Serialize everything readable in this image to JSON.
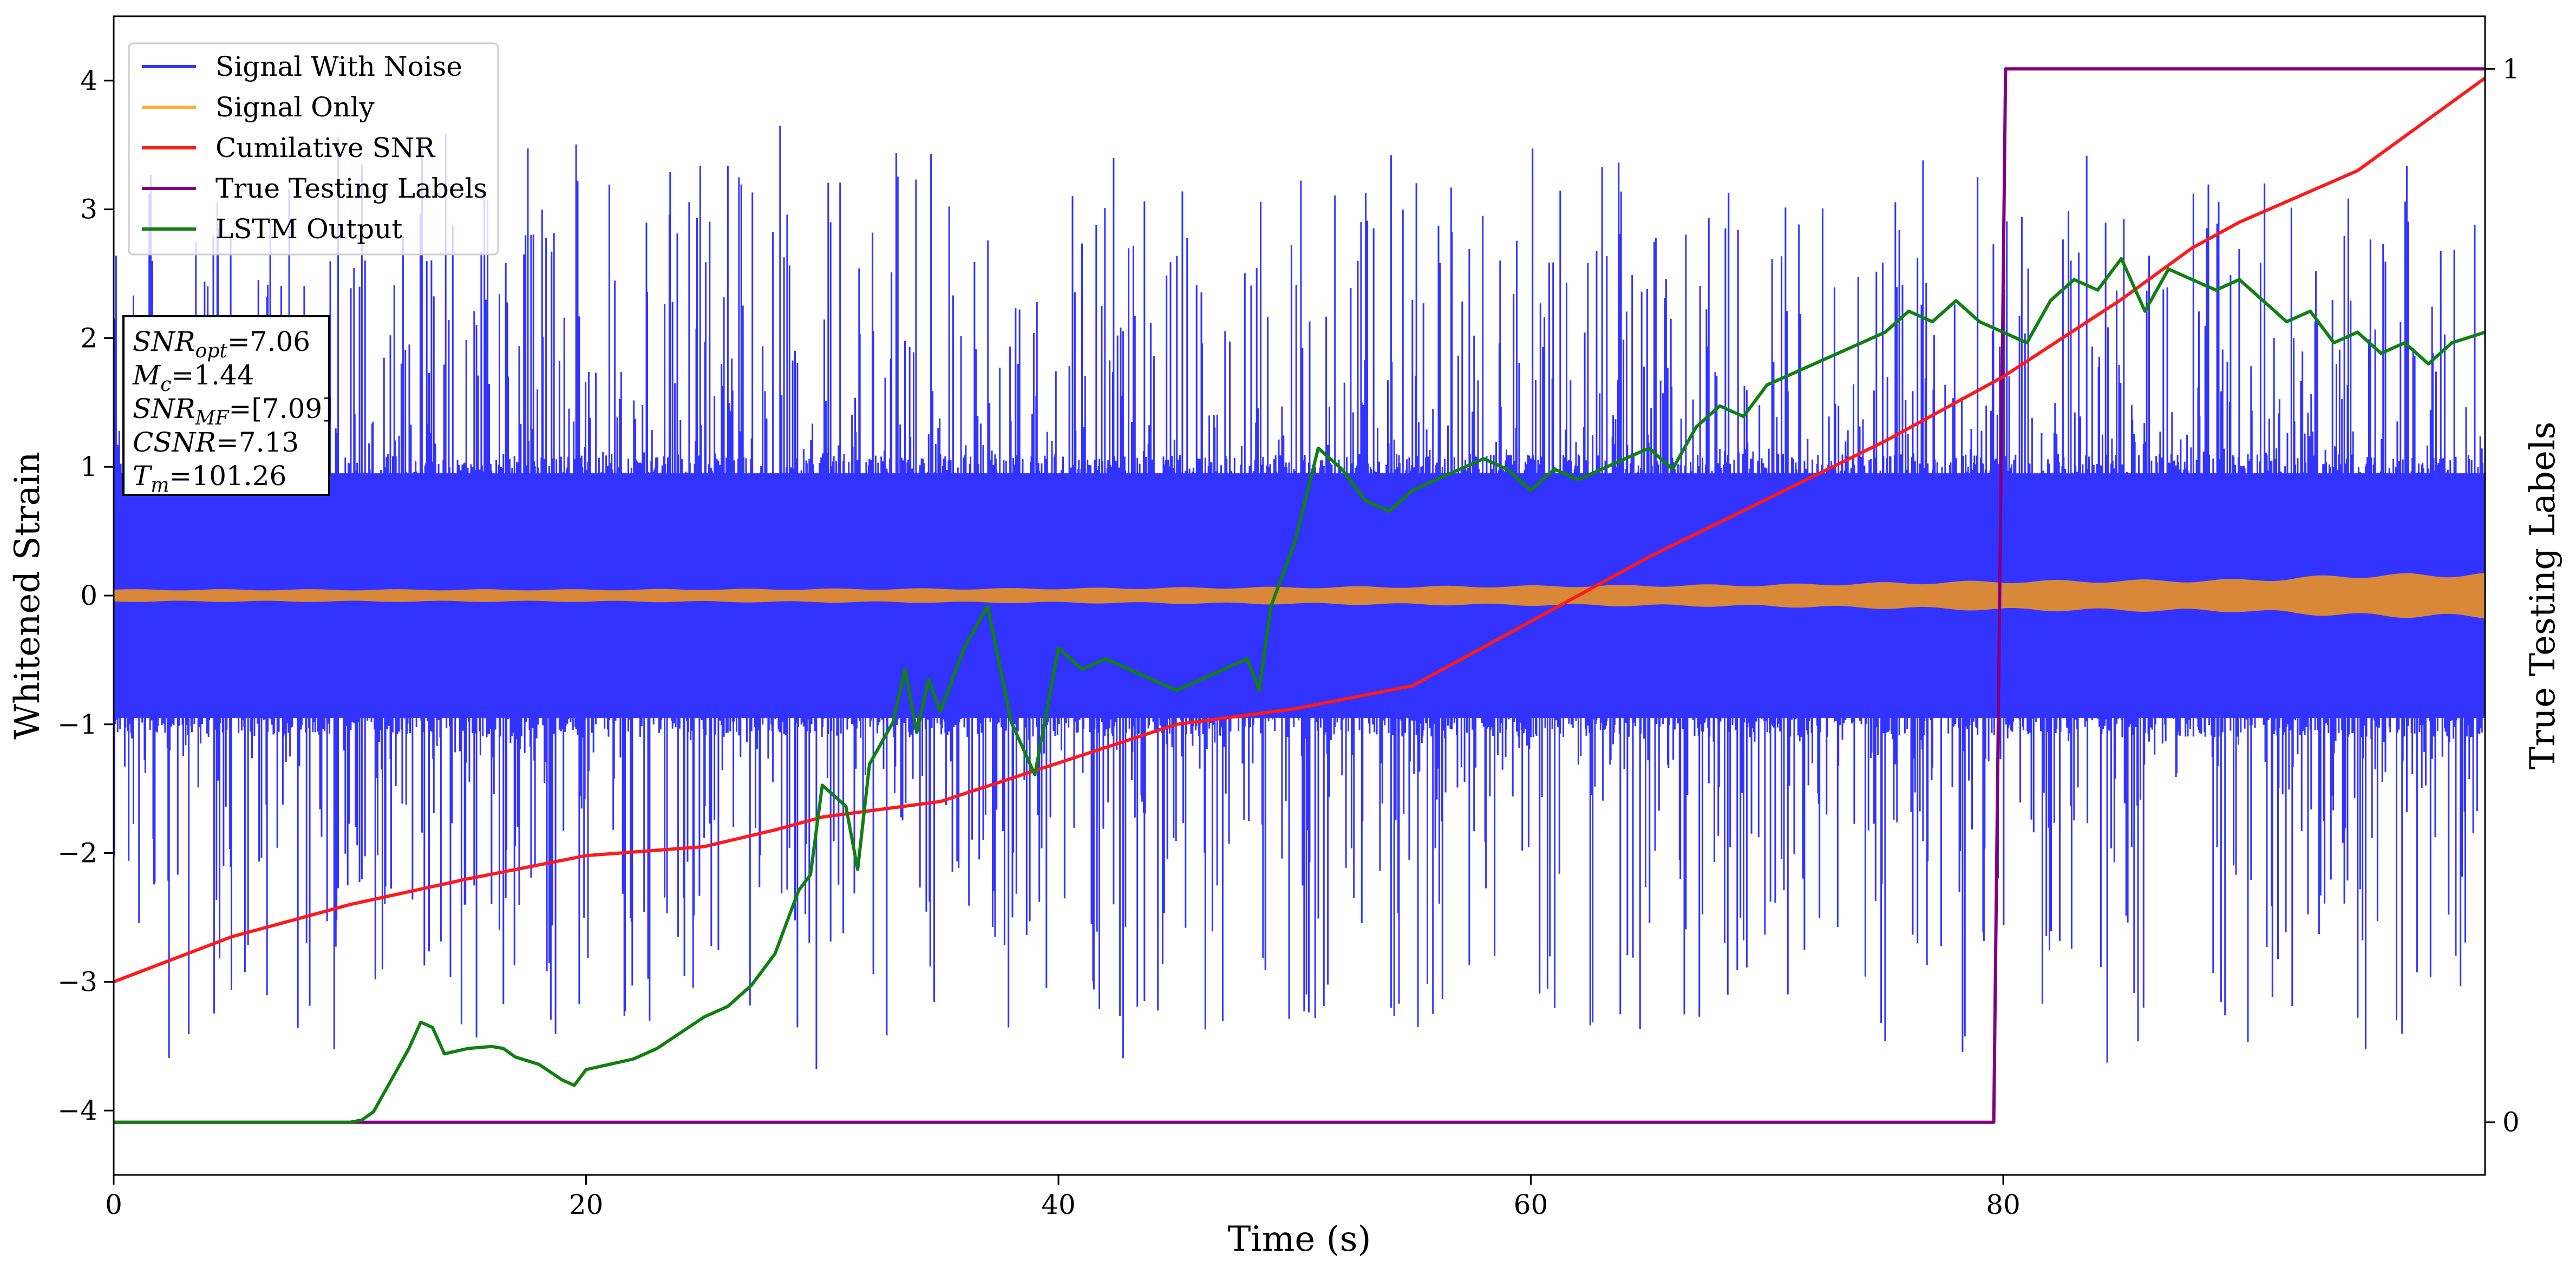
{
  "chart_data": {
    "type": "line",
    "xlabel": "Time (s)",
    "ylabel": "Whitened Strain",
    "y2label": "True Testing Labels",
    "xlim": [
      0,
      100.4
    ],
    "ylim": [
      -4.5,
      4.5
    ],
    "y2lim": [
      -0.05,
      1.05
    ],
    "xticks": [
      0,
      20,
      40,
      60,
      80
    ],
    "yticks": [
      -4,
      -3,
      -2,
      -1,
      0,
      1,
      2,
      3,
      4
    ],
    "y2ticks": [
      0,
      1
    ],
    "grid": false,
    "legend_position": "top-left",
    "legend": [
      {
        "name": "Signal With Noise",
        "color": "#3333ff"
      },
      {
        "name": "Signal Only",
        "color": "#f5b041"
      },
      {
        "name": "Cumilative SNR",
        "color": "#ff1a1a"
      },
      {
        "name": "True Testing Labels",
        "color": "#800080"
      },
      {
        "name": "LSTM Output",
        "color": "#108010"
      }
    ],
    "info_box": {
      "lines": [
        {
          "base": "SNR",
          "sub": "opt",
          "value": "=7.06"
        },
        {
          "base": "M",
          "sub": "c",
          "value": "=1.44"
        },
        {
          "base": "SNR",
          "sub": "MF",
          "value": "=[7.09]"
        },
        {
          "base": "CSNR",
          "sub": "",
          "value": "=7.13"
        },
        {
          "base": "T",
          "sub": "m",
          "value": "=101.26"
        }
      ]
    },
    "series": [
      {
        "name": "Signal With Noise",
        "color": "#3333ff",
        "kind": "noise-band",
        "core_amplitude": 1.1,
        "spike_max": 3.7
      },
      {
        "name": "Signal Only",
        "color": "#d9883a",
        "kind": "envelope",
        "x": [
          0,
          20,
          40,
          50,
          60,
          70,
          80,
          90,
          95,
          100.4
        ],
        "amplitude": [
          0.05,
          0.05,
          0.06,
          0.07,
          0.08,
          0.09,
          0.12,
          0.13,
          0.17,
          0.18
        ]
      },
      {
        "name": "Cumilative SNR",
        "color": "#ff1a1a",
        "axis": "left",
        "x": [
          0,
          5,
          10,
          15,
          20,
          25,
          28,
          30,
          35,
          40,
          45,
          50,
          55,
          60,
          65,
          70,
          75,
          80,
          85,
          88,
          90,
          95,
          100.4
        ],
        "y": [
          -3.0,
          -2.65,
          -2.4,
          -2.2,
          -2.02,
          -1.95,
          -1.82,
          -1.72,
          -1.6,
          -1.3,
          -1.0,
          -0.88,
          -0.7,
          -0.2,
          0.3,
          0.75,
          1.2,
          1.7,
          2.3,
          2.7,
          2.9,
          3.3,
          4.02
        ]
      },
      {
        "name": "True Testing Labels",
        "color": "#800080",
        "axis": "right",
        "x": [
          0,
          79.6,
          80.1,
          100.4
        ],
        "y": [
          0,
          0,
          1,
          1
        ]
      },
      {
        "name": "LSTM Output",
        "color": "#108010",
        "axis": "right",
        "x": [
          0,
          10,
          10.5,
          11,
          12,
          12.5,
          13,
          13.5,
          14,
          15,
          16,
          16.5,
          17,
          18,
          19,
          19.5,
          20,
          21,
          22,
          23,
          24,
          25,
          26,
          27,
          28,
          29,
          29.5,
          30,
          31,
          31.5,
          32,
          33,
          33.5,
          34,
          34.5,
          35,
          36,
          37,
          38,
          39,
          40,
          41,
          42,
          43,
          44,
          45,
          46,
          47,
          48,
          48.5,
          49,
          49.5,
          50,
          51,
          52,
          53,
          54,
          55,
          56,
          57,
          58,
          59,
          60,
          61,
          62,
          63,
          64,
          65,
          66,
          67,
          68,
          69,
          70,
          71,
          72,
          73,
          74,
          75,
          76,
          77,
          78,
          79,
          80,
          81,
          82,
          83,
          84,
          85,
          86,
          87,
          88,
          89,
          90,
          91,
          92,
          93,
          94,
          95,
          96,
          97,
          98,
          99,
          100.4
        ],
        "y": [
          0,
          0,
          0.002,
          0.01,
          0.05,
          0.07,
          0.095,
          0.09,
          0.065,
          0.07,
          0.072,
          0.07,
          0.062,
          0.055,
          0.04,
          0.035,
          0.05,
          0.055,
          0.06,
          0.07,
          0.085,
          0.1,
          0.11,
          0.13,
          0.16,
          0.22,
          0.235,
          0.32,
          0.3,
          0.24,
          0.34,
          0.38,
          0.43,
          0.37,
          0.42,
          0.39,
          0.45,
          0.49,
          0.38,
          0.33,
          0.45,
          0.43,
          0.44,
          0.43,
          0.42,
          0.41,
          0.42,
          0.43,
          0.44,
          0.41,
          0.49,
          0.52,
          0.55,
          0.64,
          0.62,
          0.59,
          0.58,
          0.6,
          0.61,
          0.62,
          0.63,
          0.62,
          0.6,
          0.62,
          0.61,
          0.62,
          0.63,
          0.64,
          0.62,
          0.66,
          0.68,
          0.67,
          0.7,
          0.71,
          0.72,
          0.73,
          0.74,
          0.75,
          0.77,
          0.76,
          0.78,
          0.76,
          0.75,
          0.74,
          0.78,
          0.8,
          0.79,
          0.82,
          0.77,
          0.81,
          0.8,
          0.79,
          0.8,
          0.78,
          0.76,
          0.77,
          0.74,
          0.75,
          0.73,
          0.74,
          0.72,
          0.74,
          0.75
        ]
      }
    ]
  }
}
